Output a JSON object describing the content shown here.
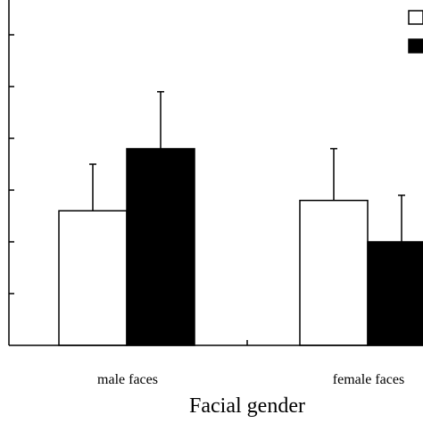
{
  "chart_data": {
    "type": "bar",
    "categories": [
      "male faces",
      "female faces"
    ],
    "series": [
      {
        "values": [
          2.6,
          2.8
        ],
        "errors": [
          0.9,
          1.0
        ],
        "fill": "#ffffff"
      },
      {
        "values": [
          3.8,
          2.0
        ],
        "errors": [
          1.1,
          0.9
        ],
        "fill": "#000000"
      }
    ],
    "xlabel": "Facial gender",
    "ylabel": "",
    "ylim": [
      0,
      6.5
    ],
    "y_tick_step": 1,
    "grid": false,
    "legend_placement": "top-right",
    "colors": {
      "axis": "#000000",
      "bar_edge": "#000000"
    }
  }
}
